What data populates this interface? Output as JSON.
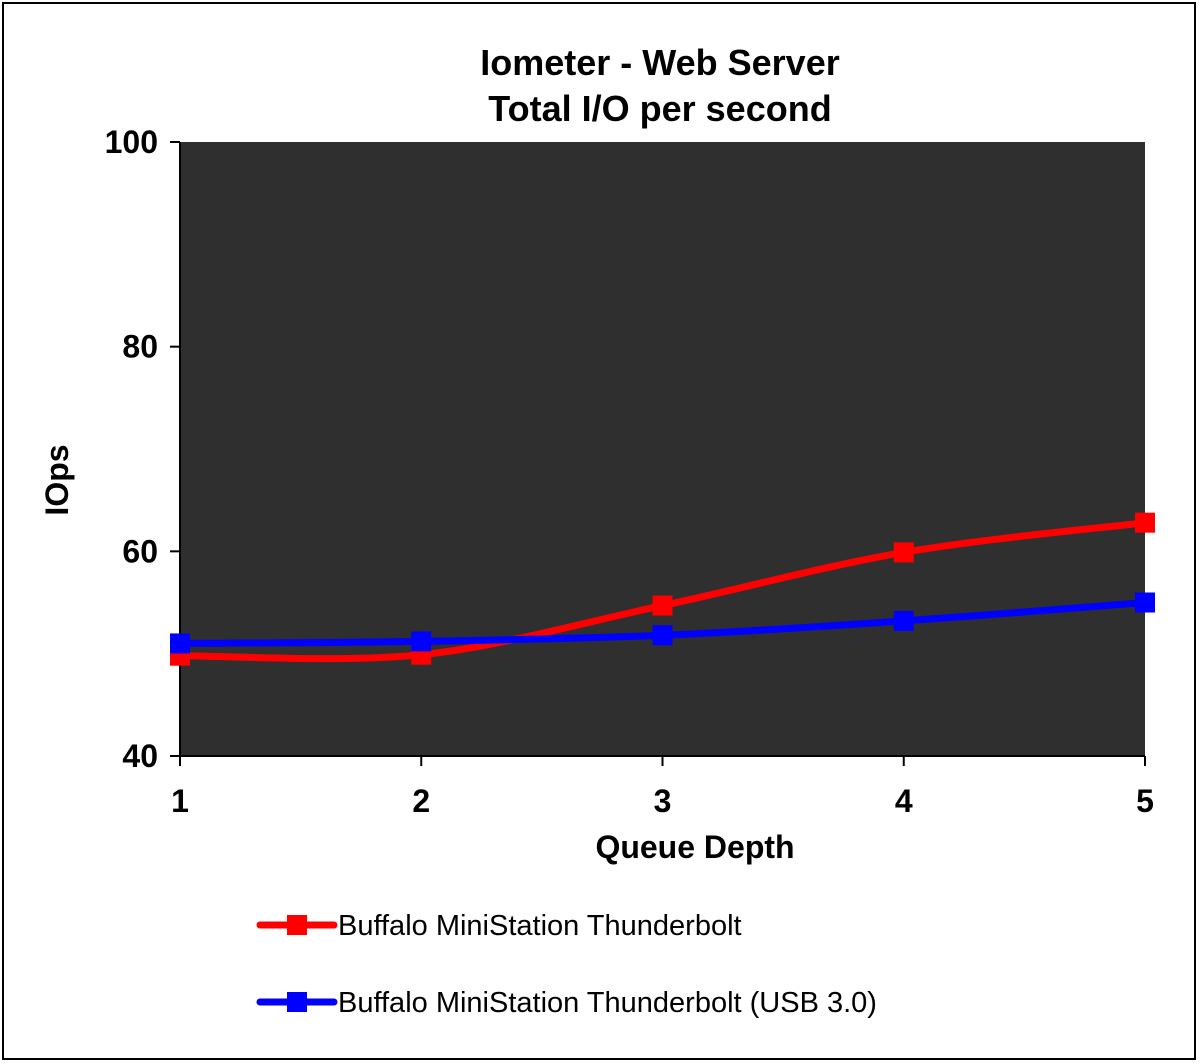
{
  "chart_data": {
    "type": "line",
    "title_lines": [
      "Iometer - Web Server",
      "Total I/O per second"
    ],
    "xlabel": "Queue Depth",
    "ylabel": "IOps",
    "x": [
      1,
      2,
      3,
      4,
      5
    ],
    "x_tick_labels": [
      "1",
      "2",
      "3",
      "4",
      "5"
    ],
    "ylim": [
      40,
      100
    ],
    "y_ticks": [
      40,
      60,
      80,
      100
    ],
    "y_tick_labels": [
      "40",
      "60",
      "80",
      "100"
    ],
    "grid": false,
    "legend_position": "bottom",
    "plot_background": "#2f2f2f",
    "series": [
      {
        "name": "Buffalo MiniStation Thunderbolt",
        "color": "#ff0000",
        "values": [
          49.8,
          49.9,
          54.7,
          59.9,
          62.8
        ]
      },
      {
        "name": "Buffalo MiniStation Thunderbolt (USB 3.0)",
        "color": "#0000ff",
        "values": [
          51.0,
          51.2,
          51.8,
          53.2,
          55.0
        ]
      }
    ]
  }
}
